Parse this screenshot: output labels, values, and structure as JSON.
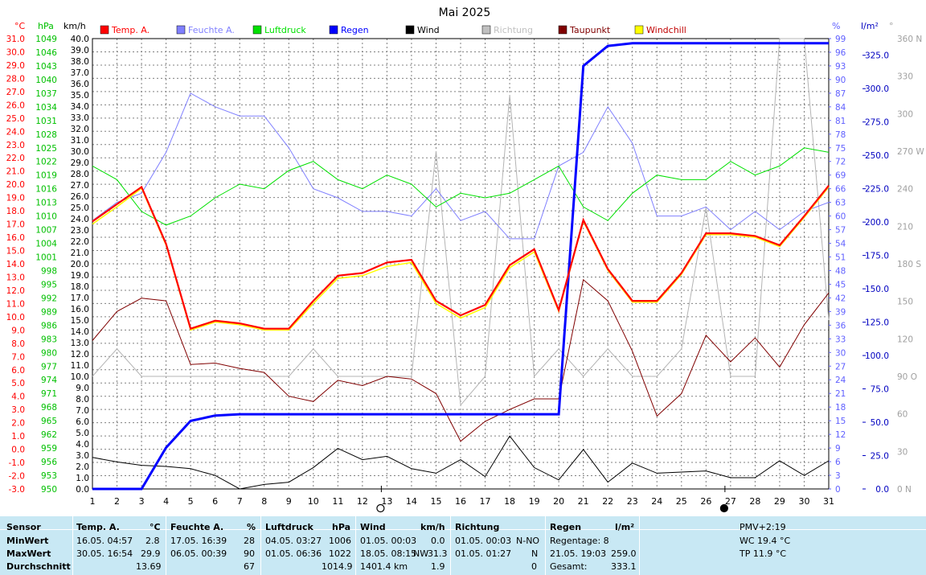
{
  "chart_data": {
    "type": "line",
    "title": "Mai 2025",
    "x": [
      1,
      2,
      3,
      4,
      5,
      6,
      7,
      8,
      9,
      10,
      11,
      12,
      13,
      14,
      15,
      16,
      17,
      18,
      19,
      20,
      21,
      22,
      23,
      24,
      25,
      26,
      27,
      28,
      29,
      30,
      31
    ],
    "xlim": [
      1,
      31
    ],
    "axes": {
      "temp": {
        "unit": "°C",
        "range": [
          -3.0,
          31.0
        ],
        "step": 1.0,
        "color": "#ff0000"
      },
      "hpa": {
        "unit": "hPa",
        "range": [
          950,
          1049
        ],
        "step": 3,
        "color": "#00c000"
      },
      "kmh": {
        "unit": "km/h",
        "range": [
          0.0,
          40.0
        ],
        "step": 1.0,
        "color": "#000000"
      },
      "pct": {
        "unit": "%",
        "range": [
          0,
          99
        ],
        "step": 3,
        "color": "#6060ff"
      },
      "rain": {
        "unit": "l/m²",
        "range": [
          0,
          337.5
        ],
        "step": 25,
        "color": "#0000c0"
      },
      "dir": {
        "unit": "°",
        "range": [
          0,
          360
        ],
        "step": 30,
        "color": "#a0a0a0",
        "labels": {
          "0": "0 N",
          "90": "90 O",
          "180": "180 S",
          "270": "270 W",
          "360": "360 N"
        }
      }
    },
    "grid": true,
    "legend": [
      {
        "name": "Temp. A.",
        "color": "#ff0000"
      },
      {
        "name": "Feuchte A.",
        "color": "#8080ff"
      },
      {
        "name": "Luftdruck",
        "color": "#00e000"
      },
      {
        "name": "Regen",
        "color": "#0000ff"
      },
      {
        "name": "Wind",
        "color": "#000000"
      },
      {
        "name": "Richtung",
        "color": "#c0c0c0"
      },
      {
        "name": "Taupunkt",
        "color": "#800000"
      },
      {
        "name": "Windchill",
        "color": "#ffff00"
      }
    ],
    "series": [
      {
        "name": "Temp. A.",
        "axis": "temp",
        "color": "#ff0000",
        "width": 2.2,
        "values": [
          17.2,
          18.5,
          19.8,
          15.5,
          9.1,
          9.7,
          9.5,
          9.1,
          9.1,
          11.2,
          13.1,
          13.3,
          14.1,
          14.3,
          11.2,
          10.1,
          10.9,
          13.9,
          15.1,
          10.5,
          17.3,
          13.6,
          11.2,
          11.2,
          13.3,
          16.3,
          16.3,
          16.1,
          15.4,
          17.6,
          19.9
        ]
      },
      {
        "name": "Windchill",
        "axis": "temp",
        "color": "#ffff00",
        "width": 1.5,
        "values": [
          17.0,
          18.3,
          19.7,
          15.4,
          9.0,
          9.6,
          9.4,
          9.0,
          9.0,
          11.0,
          12.9,
          13.1,
          13.8,
          14.1,
          11.0,
          9.9,
          10.7,
          13.7,
          14.9,
          10.4,
          17.2,
          13.5,
          11.1,
          11.1,
          13.2,
          16.2,
          16.2,
          16.0,
          15.3,
          17.5,
          19.8
        ]
      },
      {
        "name": "Taupunkt",
        "axis": "temp",
        "color": "#800000",
        "width": 1,
        "values": [
          8.2,
          10.4,
          11.4,
          11.2,
          6.4,
          6.5,
          6.1,
          5.8,
          4.0,
          3.6,
          5.2,
          4.8,
          5.5,
          5.3,
          4.2,
          0.6,
          2.1,
          3.0,
          3.8,
          3.8,
          12.8,
          11.2,
          7.4,
          2.5,
          4.2,
          8.6,
          6.6,
          8.4,
          6.2,
          9.4,
          11.8
        ]
      },
      {
        "name": "Feuchte A.",
        "axis": "pct",
        "color": "#8080ff",
        "width": 1,
        "values": [
          59,
          63,
          65,
          74,
          87,
          84,
          82,
          82,
          75,
          66,
          64,
          61,
          61,
          60,
          66,
          59,
          61,
          55,
          55,
          71,
          74,
          84,
          76,
          60,
          60,
          62,
          57,
          61,
          57,
          61,
          63
        ]
      },
      {
        "name": "Luftdruck",
        "axis": "hpa",
        "color": "#00e000",
        "width": 1,
        "values": [
          1021,
          1018,
          1011,
          1008,
          1010,
          1014,
          1017,
          1016,
          1020,
          1022,
          1018,
          1016,
          1019,
          1017,
          1012,
          1015,
          1014,
          1015,
          1018,
          1021,
          1012,
          1009,
          1015,
          1019,
          1018,
          1018,
          1022,
          1019,
          1021,
          1025,
          1024
        ]
      },
      {
        "name": "Regen",
        "axis": "rain",
        "color": "#0000ff",
        "width": 3,
        "values": [
          0,
          0,
          0,
          31,
          51,
          55,
          56,
          56,
          56,
          56,
          56,
          56,
          56,
          56,
          56,
          56,
          56,
          56,
          56,
          56,
          317,
          332,
          334,
          334,
          334,
          334,
          334,
          334,
          334,
          334,
          334
        ]
      },
      {
        "name": "Wind",
        "axis": "kmh",
        "color": "#000000",
        "width": 1,
        "values": [
          2.8,
          2.4,
          2.1,
          2.0,
          1.8,
          1.2,
          0.0,
          0.4,
          0.6,
          1.9,
          3.6,
          2.6,
          2.9,
          1.8,
          1.4,
          2.6,
          1.1,
          4.7,
          1.9,
          0.8,
          3.5,
          0.6,
          2.3,
          1.4,
          1.5,
          1.6,
          1.0,
          1.0,
          2.5,
          1.2,
          2.5
        ]
      },
      {
        "name": "Richtung",
        "axis": "dir",
        "color": "#b4b4b4",
        "width": 1,
        "values": [
          90,
          112,
          90,
          90,
          90,
          90,
          90,
          90,
          90,
          112,
          90,
          90,
          90,
          90,
          270,
          67,
          90,
          315,
          90,
          112,
          90,
          112,
          90,
          90,
          112,
          225,
          90,
          90,
          360,
          360,
          135
        ]
      }
    ]
  },
  "labels": {
    "unit_temp": "°C",
    "unit_hpa": "hPa",
    "unit_kmh": "km/h",
    "unit_pct": "%",
    "unit_rain": "l/m²",
    "unit_dir": "°"
  },
  "moon_marks": [
    {
      "day": 13,
      "phase": "full"
    },
    {
      "day": 27,
      "phase": "new"
    }
  ],
  "summary": {
    "rows": [
      "Sensor",
      "MinWert",
      "MaxWert",
      "Durchschnitt"
    ],
    "temp": {
      "title": "Temp. A.",
      "unit": "°C",
      "min_time": "16.05.  04:57",
      "min": "2.8",
      "max_time": "30.05.  16:54",
      "max": "29.9",
      "avg": "13.69"
    },
    "hum": {
      "title": "Feuchte A.",
      "unit": "%",
      "min_time": "17.05.  16:39",
      "min": "28",
      "max_time": "06.05.  00:39",
      "max": "90",
      "avg": "67"
    },
    "press": {
      "title": "Luftdruck",
      "unit": "hPa",
      "min_time": "04.05.  03:27",
      "min": "1006",
      "max_time": "01.05.  06:36",
      "max": "1022",
      "avg": "1014.9"
    },
    "wind": {
      "title": "Wind",
      "unit": "km/h",
      "min_time": "01.05.  00:03",
      "min": "0.0",
      "max_time": "18.05.  08:15",
      "max_dir": "NW",
      "max": "31.3",
      "avg_label": "1401.4 km",
      "avg": "1.9"
    },
    "dir": {
      "title": "Richtung",
      "min_time": "01.05.  00:03",
      "min": "N-NO",
      "max_time": "01.05.  01:27",
      "max": "N",
      "avg": "0"
    },
    "rain": {
      "title": "Regen",
      "unit": "l/m²",
      "days": "Regentage: 8",
      "max_time": "21.05.  19:03",
      "max": "259.0",
      "total_label": "Gesamt:",
      "total": "333.1"
    },
    "extra": {
      "pmv": "PMV+2:19",
      "wc": "WC 19.4 °C",
      "tp": "TP 11.9 °C"
    }
  }
}
